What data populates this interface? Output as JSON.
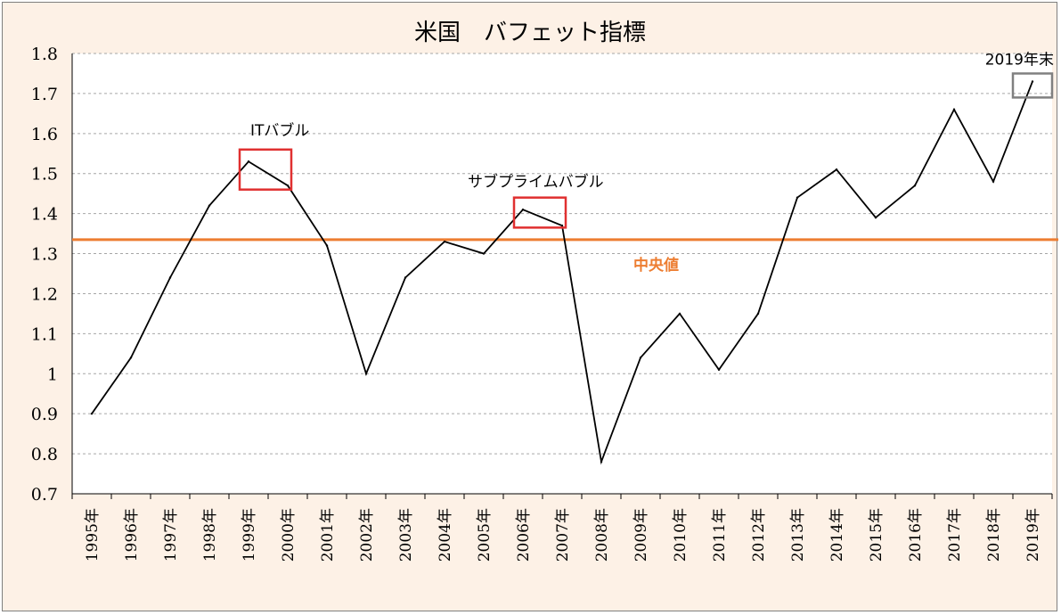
{
  "chart_data": {
    "type": "line",
    "title": "米国　バフェット指標",
    "xlabel": "",
    "ylabel": "",
    "x": [
      "1995年",
      "1996年",
      "1997年",
      "1998年",
      "1999年",
      "2000年",
      "2001年",
      "2002年",
      "2003年",
      "2004年",
      "2005年",
      "2006年",
      "2007年",
      "2008年",
      "2009年",
      "2010年",
      "2011年",
      "2012年",
      "2013年",
      "2014年",
      "2015年",
      "2016年",
      "2017年",
      "2018年",
      "2019年"
    ],
    "series": [
      {
        "values": [
          0.9,
          1.04,
          1.24,
          1.42,
          1.53,
          1.47,
          1.32,
          1.0,
          1.24,
          1.33,
          1.3,
          1.41,
          1.37,
          0.78,
          1.04,
          1.15,
          1.01,
          1.15,
          1.44,
          1.51,
          1.39,
          1.47,
          1.66,
          1.48,
          1.73
        ],
        "color": "#000000"
      }
    ],
    "yticks": [
      "0.7",
      "0.8",
      "0.9",
      "1",
      "1.1",
      "1.2",
      "1.3",
      "1.4",
      "1.5",
      "1.6",
      "1.7",
      "1.8"
    ],
    "ylim": [
      0.7,
      1.8
    ],
    "grid": "horizontal-dashed",
    "median": {
      "value": 1.335,
      "label": "中央値",
      "color": "#ed7d31"
    },
    "annotations": [
      {
        "text": "ITバブル",
        "x_range": [
          "1999年",
          "2000年"
        ],
        "y_range": [
          1.46,
          1.56
        ],
        "box_color": "#e03030"
      },
      {
        "text": "サブプライムバブル",
        "x_range": [
          "2006年",
          "2007年"
        ],
        "y_range": [
          1.365,
          1.44
        ],
        "box_color": "#e03030"
      },
      {
        "text": "2019年末",
        "x_range": [
          "2019年",
          "2019年"
        ],
        "y_range": [
          1.69,
          1.75
        ],
        "box_color": "#808080"
      }
    ]
  },
  "colors": {
    "background": "#fdf1e6",
    "plot_background": "#ffffff",
    "grid": "#a6a6a6"
  }
}
